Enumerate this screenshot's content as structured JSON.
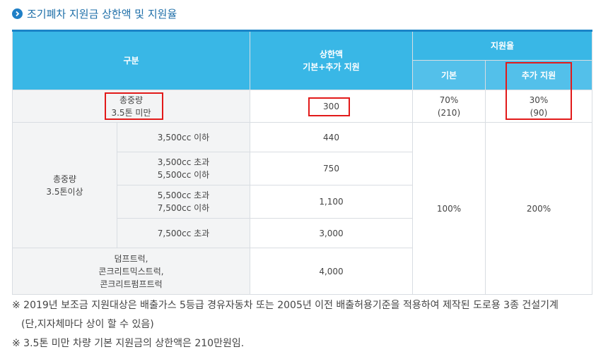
{
  "title": "조기폐차 지원금 상한액 및 지원율",
  "header": {
    "category": "구분",
    "limit_line1": "상한액",
    "limit_line2": "기본+추가 지원",
    "rate": "지원율",
    "rate_basic": "기본",
    "rate_extra": "추가 지원"
  },
  "rows": {
    "under35": {
      "label_line1": "총중량",
      "label_line2": "3.5톤 미만",
      "limit": "300",
      "basic_line1": "70%",
      "basic_line2": "(210)",
      "extra_line1": "30%",
      "extra_line2": "(90)"
    },
    "over35_label_line1": "총중량",
    "over35_label_line2": "3.5톤이상",
    "sub": [
      {
        "line1": "3,500cc 이하",
        "line2": "",
        "limit": "440"
      },
      {
        "line1": "3,500cc 초과",
        "line2": "5,500cc 이하",
        "limit": "750"
      },
      {
        "line1": "5,500cc 초과",
        "line2": "7,500cc 이하",
        "limit": "1,100"
      },
      {
        "line1": "7,500cc 초과",
        "line2": "",
        "limit": "3,000"
      }
    ],
    "special": {
      "line1": "덤프트럭,",
      "line2": "콘크리트믹스트럭,",
      "line3": "콘크리트펌프트럭",
      "limit": "4,000"
    },
    "over_basic": "100%",
    "over_extra": "200%"
  },
  "notes": {
    "note1": "※ 2019년 보조금 지원대상은 배출가스 5등급 경유자동차 또는 2005년 이전 배출허용기준을 적용하여 제작된 도로용 3종 건설기계",
    "note1_cont": "(단,지자체마다 상이 할 수 있음)",
    "note2": "※ 3.5톤 미만 차량 기본 지원금의 상한액은 210만원임."
  },
  "colors": {
    "header_blue": "#39b7e6",
    "subheader_blue": "#53c0ea",
    "title_blue": "#1d6ea8",
    "highlight_red": "#e21a1a"
  },
  "icons": {
    "title": "chevron-circle-right-icon"
  }
}
